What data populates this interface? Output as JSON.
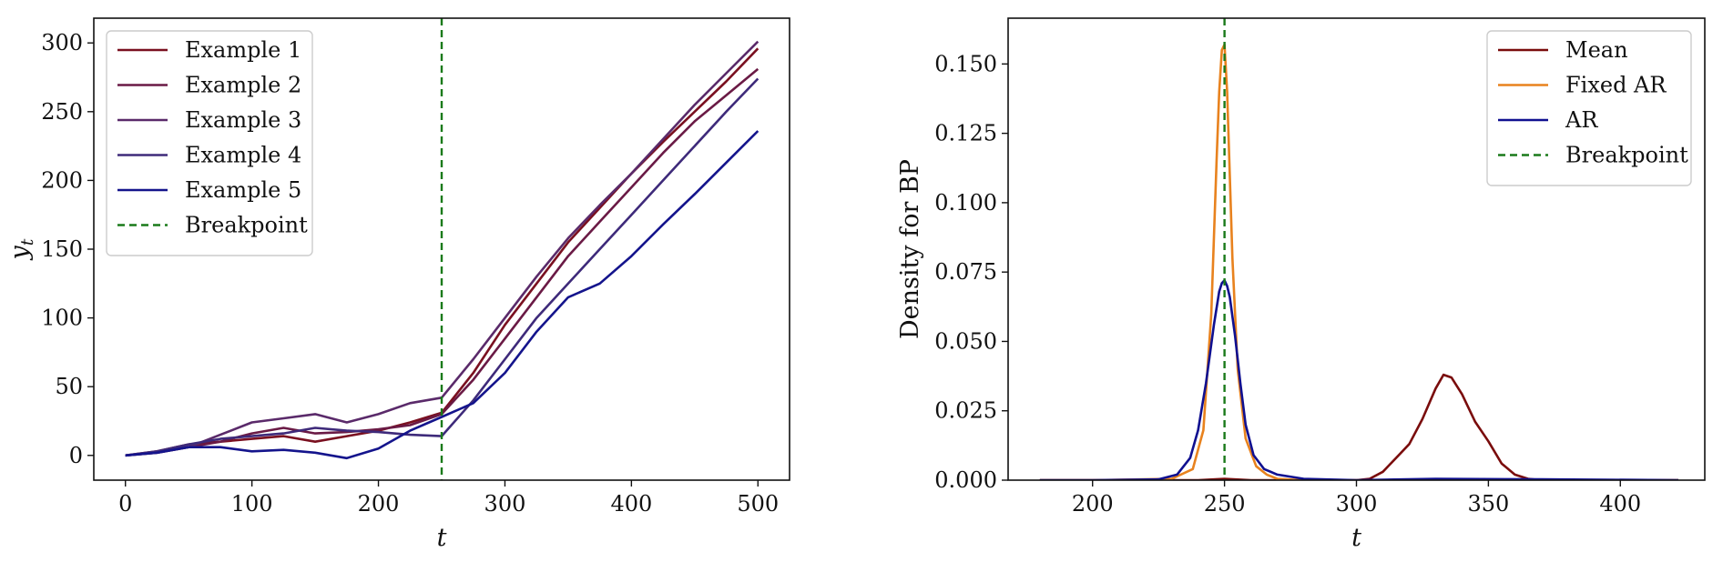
{
  "chart_data": [
    {
      "type": "line",
      "xlabel": "t",
      "ylabel": "y_t",
      "xlim": [
        -25,
        525
      ],
      "ylim": [
        -18,
        318
      ],
      "xticks": [
        0,
        100,
        200,
        300,
        400,
        500
      ],
      "yticks": [
        0,
        50,
        100,
        150,
        200,
        250,
        300
      ],
      "grid": false,
      "legend_position": "top-left",
      "vline": {
        "name": "Breakpoint",
        "x": 250,
        "color": "#1a7a1a",
        "style": "dashed"
      },
      "series": [
        {
          "name": "Example 1",
          "color": "#7a1020",
          "x": [
            0,
            25,
            50,
            75,
            100,
            125,
            150,
            175,
            200,
            225,
            250,
            275,
            300,
            325,
            350,
            375,
            400,
            425,
            450,
            475,
            500
          ],
          "y": [
            0,
            3,
            8,
            10,
            12,
            14,
            10,
            14,
            18,
            24,
            31,
            60,
            95,
            125,
            155,
            180,
            205,
            228,
            250,
            272,
            296
          ]
        },
        {
          "name": "Example 2",
          "color": "#6a1a45",
          "x": [
            0,
            25,
            50,
            75,
            100,
            125,
            150,
            175,
            200,
            225,
            250,
            275,
            300,
            325,
            350,
            375,
            400,
            425,
            450,
            475,
            500
          ],
          "y": [
            0,
            2,
            6,
            10,
            16,
            20,
            16,
            17,
            19,
            22,
            30,
            55,
            85,
            115,
            145,
            170,
            195,
            220,
            243,
            262,
            281
          ]
        },
        {
          "name": "Example 3",
          "color": "#5a2a6a",
          "x": [
            0,
            25,
            50,
            75,
            100,
            125,
            150,
            175,
            200,
            225,
            250,
            275,
            300,
            325,
            350,
            375,
            400,
            425,
            450,
            475,
            500
          ],
          "y": [
            0,
            2,
            6,
            15,
            24,
            27,
            30,
            24,
            30,
            38,
            42,
            70,
            100,
            130,
            158,
            182,
            205,
            230,
            255,
            278,
            301
          ]
        },
        {
          "name": "Example 4",
          "color": "#3e2a7a",
          "x": [
            0,
            25,
            50,
            75,
            100,
            125,
            150,
            175,
            200,
            225,
            250,
            275,
            300,
            325,
            350,
            375,
            400,
            425,
            450,
            475,
            500
          ],
          "y": [
            0,
            3,
            8,
            12,
            14,
            16,
            20,
            18,
            17,
            15,
            14,
            40,
            70,
            100,
            125,
            150,
            175,
            200,
            225,
            250,
            274
          ]
        },
        {
          "name": "Example 5",
          "color": "#14148c",
          "x": [
            0,
            25,
            50,
            75,
            100,
            125,
            150,
            175,
            200,
            225,
            250,
            275,
            300,
            325,
            350,
            375,
            400,
            425,
            450,
            475,
            500
          ],
          "y": [
            0,
            2,
            6,
            6,
            3,
            4,
            2,
            -2,
            5,
            18,
            28,
            38,
            60,
            90,
            115,
            125,
            145,
            168,
            190,
            213,
            236
          ]
        }
      ]
    },
    {
      "type": "line",
      "xlabel": "t",
      "ylabel": "Density for BP",
      "xlim": [
        168,
        432
      ],
      "ylim": [
        0,
        0.1665
      ],
      "xticks": [
        200,
        250,
        300,
        350,
        400
      ],
      "yticks": [
        "0.000",
        "0.025",
        "0.050",
        "0.075",
        "0.100",
        "0.125",
        "0.150"
      ],
      "grid": false,
      "legend_position": "top-right",
      "vline": {
        "name": "Breakpoint",
        "x": 250,
        "color": "#1a7a1a",
        "style": "dashed"
      },
      "series": [
        {
          "name": "Mean",
          "color": "#7a0c0c",
          "x": [
            180,
            200,
            240,
            250,
            260,
            280,
            300,
            305,
            310,
            315,
            320,
            325,
            330,
            333,
            336,
            340,
            345,
            350,
            355,
            360,
            365,
            370,
            400,
            422
          ],
          "y": [
            0,
            0,
            0,
            0.0005,
            0,
            0,
            0,
            0.0005,
            0.003,
            0.008,
            0.013,
            0.022,
            0.033,
            0.038,
            0.037,
            0.031,
            0.021,
            0.014,
            0.006,
            0.002,
            0.0005,
            0,
            0,
            0
          ]
        },
        {
          "name": "Fixed AR",
          "color": "#e8821e",
          "x": [
            180,
            200,
            230,
            238,
            242,
            245,
            247,
            248,
            249,
            250,
            251,
            252,
            253,
            255,
            258,
            262,
            266,
            270,
            280,
            300,
            422
          ],
          "y": [
            0,
            0,
            0.0005,
            0.004,
            0.018,
            0.06,
            0.115,
            0.14,
            0.155,
            0.157,
            0.14,
            0.11,
            0.08,
            0.04,
            0.015,
            0.005,
            0.002,
            0.0005,
            0,
            0,
            0
          ]
        },
        {
          "name": "AR",
          "color": "#101090",
          "x": [
            180,
            200,
            225,
            232,
            237,
            240,
            243,
            246,
            248,
            249,
            250,
            251,
            252,
            254,
            256,
            258,
            261,
            265,
            270,
            280,
            300,
            330,
            370,
            422
          ],
          "y": [
            0,
            0,
            0.0003,
            0.002,
            0.008,
            0.018,
            0.035,
            0.056,
            0.068,
            0.071,
            0.072,
            0.07,
            0.066,
            0.052,
            0.035,
            0.02,
            0.009,
            0.004,
            0.002,
            0.0005,
            0,
            0.0005,
            0.0003,
            0
          ]
        }
      ]
    }
  ]
}
